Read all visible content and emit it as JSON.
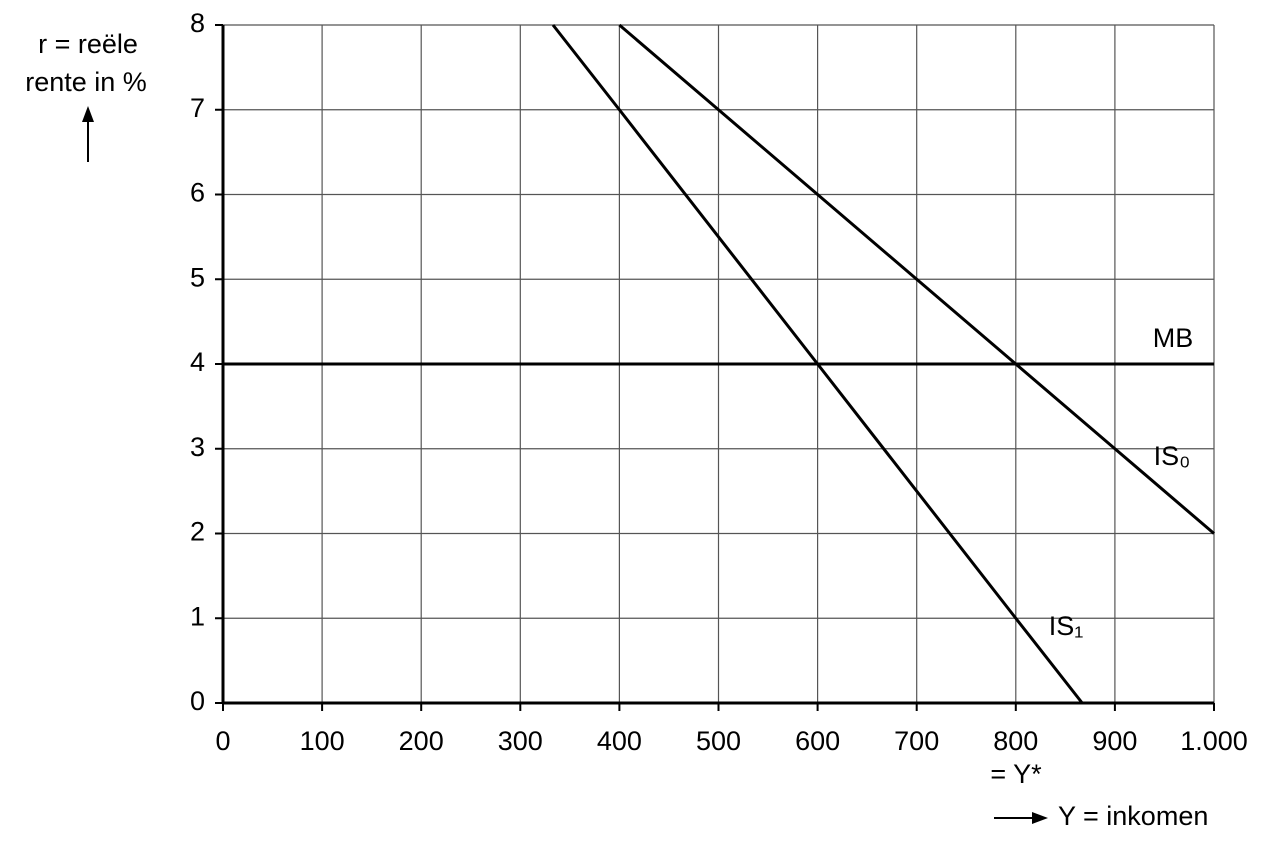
{
  "chart_data": {
    "type": "line",
    "y_label": [
      "r = reële",
      "rente in %"
    ],
    "x_label": "Y = inkomen",
    "annotation": "= Y*",
    "xlim": [
      0,
      1000
    ],
    "xticks": [
      0,
      100,
      200,
      300,
      400,
      500,
      600,
      700,
      800,
      900,
      {
        "value": 1000,
        "label": "1.000"
      }
    ],
    "ylim": [
      0,
      8
    ],
    "yticks": [
      0,
      1,
      2,
      3,
      4,
      5,
      6,
      7,
      8
    ],
    "grid": true,
    "series": [
      {
        "name": "MB",
        "color": "#000000",
        "x": [
          0,
          1000
        ],
        "values": [
          4,
          4
        ]
      },
      {
        "name": "IS₀",
        "color": "#000000",
        "x": [
          400,
          500,
          600,
          700,
          800,
          900,
          1000
        ],
        "values": [
          8,
          7,
          6,
          5,
          4,
          3,
          2
        ]
      },
      {
        "name": "IS₁",
        "color": "#000000",
        "x": [
          333,
          400,
          600,
          800,
          867
        ],
        "values": [
          8,
          7,
          4,
          1,
          0
        ]
      }
    ]
  }
}
